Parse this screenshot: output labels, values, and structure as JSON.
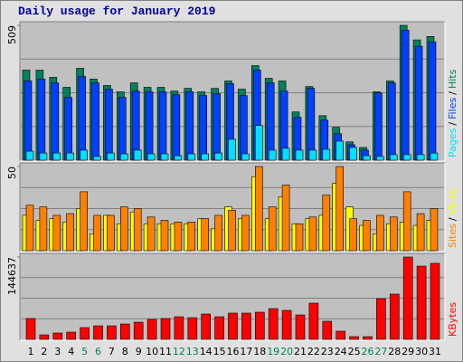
{
  "chart_data": [
    {
      "type": "bar",
      "title": "Daily usage for January 2019",
      "legend_separator": "/",
      "ylim": [
        0,
        509
      ],
      "yticks": [
        509
      ],
      "series": [
        {
          "name": "Hits",
          "color": "#00805c",
          "values": [
            340,
            340,
            313,
            275,
            347,
            306,
            282,
            258,
            292,
            275,
            275,
            261,
            271,
            258,
            271,
            299,
            268,
            357,
            309,
            299,
            182,
            278,
            168,
            124,
            69,
            48,
            258,
            299,
            509,
            454,
            467
          ]
        },
        {
          "name": "Files",
          "color": "#0040ff",
          "values": [
            299,
            306,
            292,
            237,
            316,
            292,
            268,
            237,
            261,
            258,
            258,
            247,
            258,
            244,
            251,
            289,
            244,
            340,
            292,
            261,
            162,
            271,
            151,
            100,
            58,
            38,
            254,
            292,
            491,
            430,
            447
          ]
        },
        {
          "name": "Pages",
          "color": "#00e0ff",
          "values": [
            34,
            27,
            27,
            27,
            38,
            14,
            27,
            24,
            38,
            24,
            24,
            17,
            24,
            24,
            27,
            79,
            24,
            131,
            38,
            45,
            38,
            38,
            41,
            72,
            48,
            17,
            14,
            21,
            21,
            21,
            27
          ]
        }
      ]
    },
    {
      "type": "bar",
      "legend_separator": "/",
      "ylim": [
        0,
        50
      ],
      "yticks": [
        50
      ],
      "series": [
        {
          "name": "Visits",
          "color": "#ffff00",
          "values": [
            21,
            18,
            19,
            17,
            25,
            10,
            21,
            16,
            23,
            16,
            16,
            16,
            16,
            19,
            13,
            26,
            19,
            44,
            19,
            32,
            16,
            19,
            21,
            40,
            26,
            15,
            10,
            16,
            17,
            15,
            18
          ]
        },
        {
          "name": "Sites",
          "color": "#ff8000",
          "values": [
            27,
            26,
            21,
            22,
            35,
            21,
            21,
            26,
            25,
            20,
            18,
            17,
            17,
            19,
            21,
            24,
            21,
            50,
            26,
            39,
            16,
            20,
            33,
            50,
            19,
            18,
            21,
            20,
            35,
            22,
            25
          ]
        }
      ]
    },
    {
      "type": "bar",
      "ylim": [
        0,
        144637
      ],
      "yticks": [
        144637
      ],
      "categories": [
        "1",
        "2",
        "3",
        "4",
        "5",
        "6",
        "7",
        "8",
        "9",
        "10",
        "11",
        "12",
        "13",
        "14",
        "15",
        "16",
        "17",
        "18",
        "19",
        "20",
        "21",
        "22",
        "23",
        "24",
        "25",
        "26",
        "27",
        "28",
        "29",
        "30",
        "31"
      ],
      "category_colors": [
        "#000",
        "#000",
        "#000",
        "#000",
        "#00805c",
        "#00805c",
        "#000",
        "#000",
        "#000",
        "#000",
        "#000",
        "#00805c",
        "#00805c",
        "#000",
        "#000",
        "#000",
        "#000",
        "#000",
        "#00805c",
        "#00805c",
        "#000",
        "#000",
        "#000",
        "#000",
        "#000",
        "#00805c",
        "#00805c",
        "#000",
        "#000",
        "#000",
        "#000"
      ],
      "series": [
        {
          "name": "KBytes",
          "color": "#ff0000",
          "values": [
            36600,
            7900,
            11100,
            12700,
            20700,
            23800,
            23800,
            27000,
            30200,
            35000,
            36600,
            39700,
            38100,
            44500,
            39700,
            46100,
            46100,
            47700,
            54000,
            50900,
            42900,
            63600,
            31800,
            14300,
            4800,
            4800,
            71500,
            79500,
            144637,
            128700,
            133500
          ]
        }
      ]
    }
  ]
}
